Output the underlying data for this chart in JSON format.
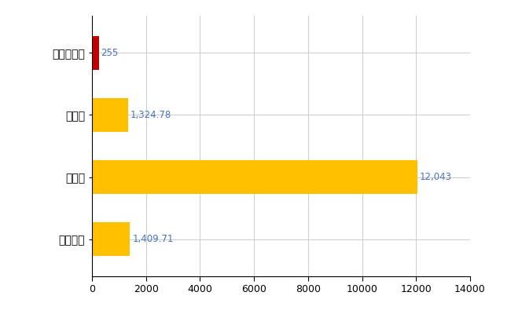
{
  "categories": [
    "全国平均",
    "県最大",
    "県平均",
    "ときがわ町"
  ],
  "values": [
    1409.71,
    12043,
    1324.78,
    255
  ],
  "bar_colors": [
    "#FFC000",
    "#FFC000",
    "#FFC000",
    "#C00000"
  ],
  "labels": [
    "1,409.71",
    "12,043",
    "1,324.78",
    "255"
  ],
  "xlim": [
    0,
    14000
  ],
  "xticks": [
    0,
    2000,
    4000,
    6000,
    8000,
    10000,
    12000,
    14000
  ],
  "grid_color": "#CCCCCC",
  "label_color": "#4472C4",
  "label_fontsize": 8.5,
  "tick_fontsize": 9,
  "ytick_fontsize": 10,
  "bar_height": 0.55,
  "figsize": [
    6.5,
    4.0
  ],
  "dpi": 100
}
